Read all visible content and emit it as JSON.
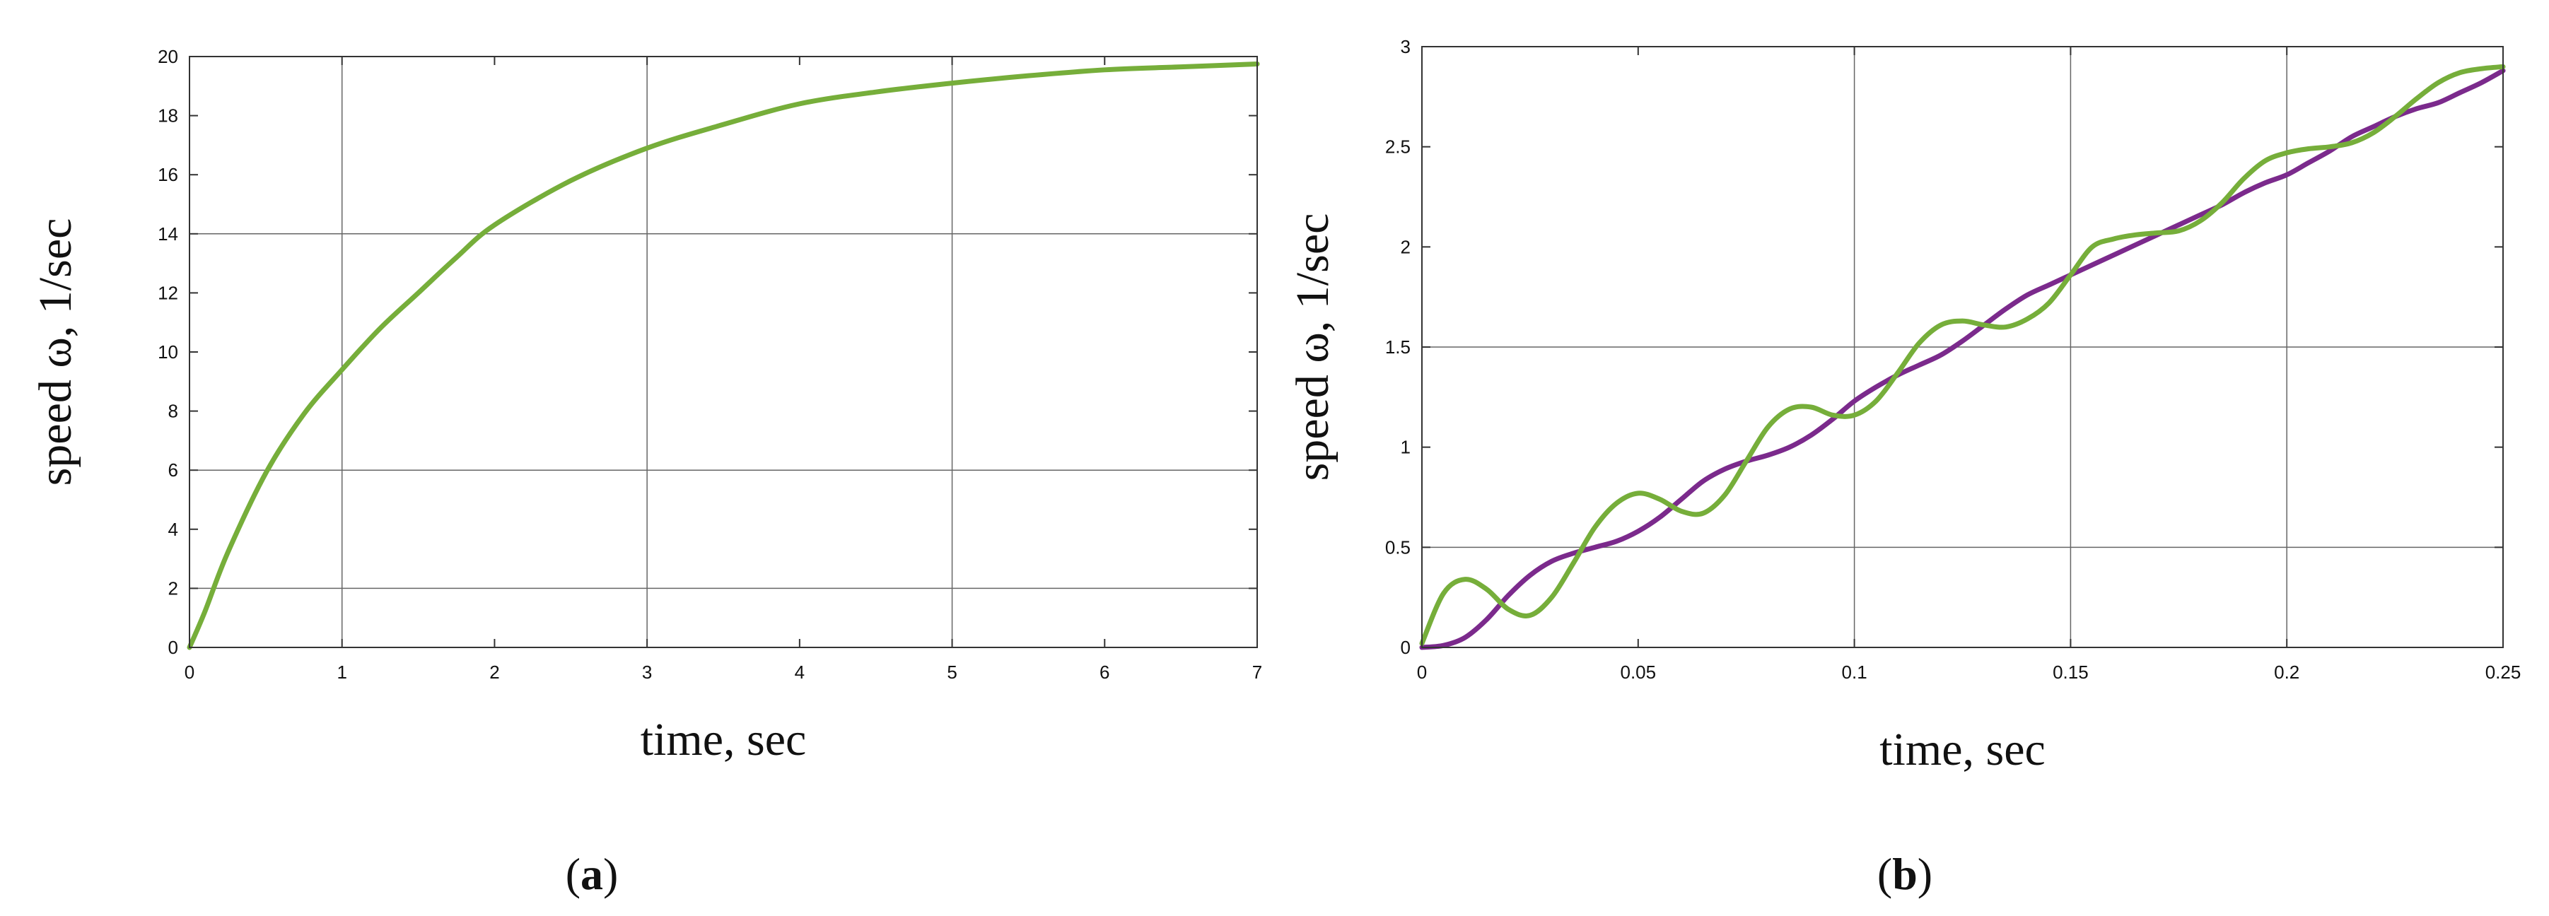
{
  "colors": {
    "green": "#76ae3a",
    "purple": "#7b2a8c",
    "axis": "#333333",
    "grid": "#666666"
  },
  "panels": [
    {
      "label_open": "(",
      "label_letter": "a",
      "label_close": ")"
    },
    {
      "label_open": "(",
      "label_letter": "b",
      "label_close": ")"
    }
  ],
  "chart_data": [
    {
      "type": "line",
      "xlabel": "time, sec",
      "ylabel": "speed ω, 1/sec",
      "xlim": [
        0,
        7
      ],
      "ylim": [
        0,
        20
      ],
      "x_ticks": [
        0,
        1,
        2,
        3,
        4,
        5,
        6,
        7
      ],
      "y_ticks": [
        0,
        2,
        4,
        6,
        8,
        10,
        12,
        14,
        16,
        18,
        20
      ],
      "x_grid": [
        1,
        3,
        5
      ],
      "y_grid": [
        2,
        6,
        14
      ],
      "grid": true,
      "series": [
        {
          "color": "#76ae3a",
          "x": [
            0,
            0.1,
            0.25,
            0.5,
            0.75,
            1,
            1.25,
            1.5,
            1.75,
            2,
            2.5,
            3,
            3.5,
            4,
            4.5,
            5,
            5.5,
            6,
            6.5,
            7
          ],
          "y": [
            0,
            1.2,
            3.2,
            5.9,
            7.9,
            9.4,
            10.8,
            12.0,
            13.2,
            14.3,
            15.8,
            16.9,
            17.7,
            18.4,
            18.8,
            19.1,
            19.35,
            19.55,
            19.65,
            19.75
          ]
        }
      ]
    },
    {
      "type": "line",
      "xlabel": "time, sec",
      "ylabel": "speed ω, 1/sec",
      "xlim": [
        0,
        0.25
      ],
      "ylim": [
        0,
        3
      ],
      "x_ticks": [
        0,
        0.05,
        0.1,
        0.15,
        0.2,
        0.25
      ],
      "y_ticks": [
        0,
        0.5,
        1,
        1.5,
        2,
        2.5,
        3
      ],
      "x_grid": [
        0.1,
        0.15,
        0.2
      ],
      "y_grid": [
        0.5,
        1.5
      ],
      "grid": true,
      "series": [
        {
          "color": "#7b2a8c",
          "x": [
            0,
            0.005,
            0.01,
            0.015,
            0.02,
            0.025,
            0.03,
            0.035,
            0.04,
            0.045,
            0.05,
            0.055,
            0.06,
            0.065,
            0.07,
            0.075,
            0.08,
            0.085,
            0.09,
            0.095,
            0.1,
            0.105,
            0.11,
            0.115,
            0.12,
            0.125,
            0.13,
            0.135,
            0.14,
            0.145,
            0.15,
            0.155,
            0.16,
            0.165,
            0.17,
            0.175,
            0.18,
            0.185,
            0.19,
            0.195,
            0.2,
            0.205,
            0.21,
            0.215,
            0.22,
            0.225,
            0.23,
            0.235,
            0.24,
            0.245,
            0.25
          ],
          "y": [
            0,
            0.01,
            0.05,
            0.14,
            0.26,
            0.36,
            0.43,
            0.47,
            0.5,
            0.53,
            0.58,
            0.65,
            0.74,
            0.83,
            0.89,
            0.93,
            0.96,
            1.0,
            1.06,
            1.14,
            1.23,
            1.3,
            1.36,
            1.41,
            1.46,
            1.53,
            1.61,
            1.69,
            1.76,
            1.81,
            1.86,
            1.91,
            1.96,
            2.01,
            2.06,
            2.11,
            2.16,
            2.21,
            2.27,
            2.32,
            2.36,
            2.42,
            2.48,
            2.55,
            2.6,
            2.65,
            2.69,
            2.72,
            2.77,
            2.82,
            2.88
          ]
        },
        {
          "color": "#76ae3a",
          "x": [
            0,
            0.005,
            0.01,
            0.015,
            0.02,
            0.025,
            0.03,
            0.035,
            0.04,
            0.045,
            0.05,
            0.055,
            0.06,
            0.065,
            0.07,
            0.075,
            0.08,
            0.085,
            0.09,
            0.095,
            0.1,
            0.105,
            0.11,
            0.115,
            0.12,
            0.125,
            0.13,
            0.135,
            0.14,
            0.145,
            0.15,
            0.155,
            0.16,
            0.165,
            0.17,
            0.175,
            0.18,
            0.185,
            0.19,
            0.195,
            0.2,
            0.205,
            0.21,
            0.215,
            0.22,
            0.225,
            0.23,
            0.235,
            0.24,
            0.245,
            0.25
          ],
          "y": [
            0.02,
            0.27,
            0.34,
            0.29,
            0.19,
            0.16,
            0.25,
            0.42,
            0.6,
            0.72,
            0.77,
            0.74,
            0.68,
            0.67,
            0.76,
            0.93,
            1.1,
            1.19,
            1.2,
            1.16,
            1.16,
            1.23,
            1.37,
            1.52,
            1.61,
            1.63,
            1.61,
            1.6,
            1.64,
            1.72,
            1.86,
            2.0,
            2.04,
            2.06,
            2.07,
            2.08,
            2.13,
            2.22,
            2.34,
            2.43,
            2.47,
            2.49,
            2.5,
            2.52,
            2.57,
            2.65,
            2.74,
            2.82,
            2.87,
            2.89,
            2.9
          ]
        }
      ]
    }
  ]
}
